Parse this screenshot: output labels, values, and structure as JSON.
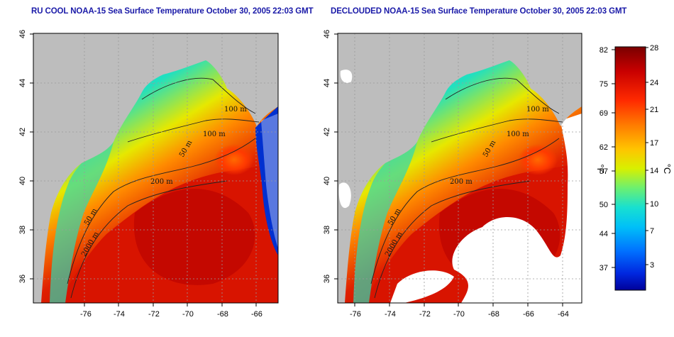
{
  "titles": {
    "left": "RU COOL NOAA-15 Sea Surface Temperature October 30, 2005 22:03 GMT",
    "right": "DECLOUDED NOAA-15 Sea Surface Temperature October 30, 2005 22:03 GMT"
  },
  "map": {
    "x_ticks": [
      "-76",
      "-74",
      "-72",
      "-70",
      "-68",
      "-66",
      "-64"
    ],
    "y_ticks": [
      "46",
      "44",
      "42",
      "40",
      "38",
      "36"
    ],
    "depth_labels": [
      "100 m",
      "100 m",
      "50 m",
      "200 m",
      "50 m",
      "2000 m"
    ],
    "land_color": "#bdbdbd",
    "cloud_color": "#ffffff"
  },
  "colorbar": {
    "fahrenheit_ticks": [
      "82",
      "75",
      "69",
      "62",
      "57",
      "50",
      "44",
      "37"
    ],
    "celsius_ticks": [
      "28",
      "24",
      "21",
      "17",
      "14",
      "10",
      "7",
      "3"
    ],
    "fahrenheit_unit": "°F",
    "celsius_unit": "°C",
    "colors": [
      "#7a0000",
      "#c80000",
      "#ff2a00",
      "#ff7a00",
      "#ffc400",
      "#e6f000",
      "#8cf050",
      "#28e0b4",
      "#00d0f0",
      "#0090ff",
      "#0040ff",
      "#0000b4"
    ]
  }
}
